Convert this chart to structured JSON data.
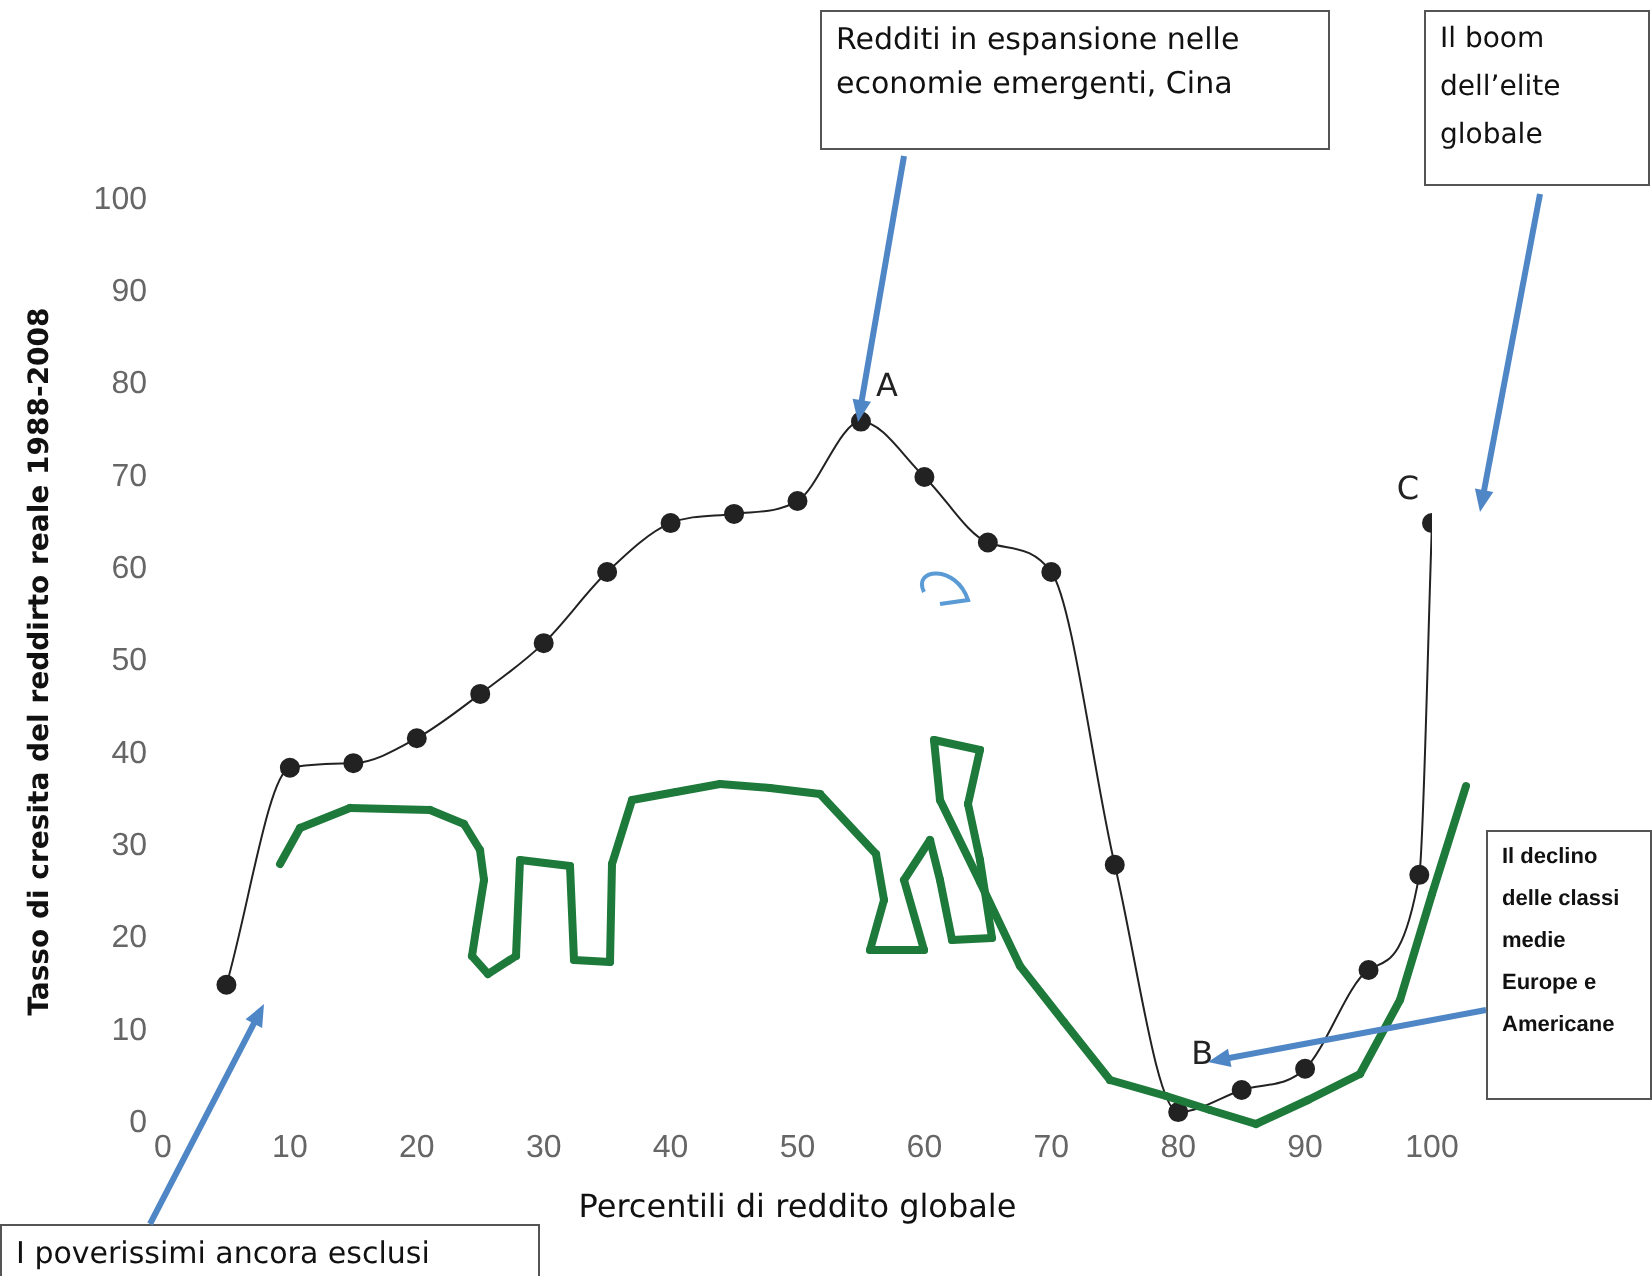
{
  "chart_data": {
    "type": "line",
    "xlabel": "Percentili di reddito globale",
    "ylabel": "Tasso di cresita del reddirto reale 1988-2008",
    "x": [
      5,
      10,
      15,
      20,
      25,
      30,
      35,
      40,
      45,
      50,
      55,
      60,
      65,
      70,
      75,
      80,
      85,
      90,
      95,
      99,
      100
    ],
    "series": [
      {
        "color": "#222222",
        "values": [
          15,
          38.5,
          39,
          41.7,
          46.5,
          52,
          59.7,
          65,
          66,
          67.4,
          76,
          70,
          62.9,
          59.7,
          28,
          1.2,
          3.6,
          5.9,
          16.6,
          26.9,
          65
        ]
      }
    ],
    "xlim": [
      0,
      100
    ],
    "xticks": [
      0,
      10,
      20,
      30,
      40,
      50,
      60,
      70,
      80,
      90,
      100
    ],
    "ylim": [
      0,
      100
    ],
    "yticks": [
      0,
      10,
      20,
      30,
      40,
      50,
      60,
      70,
      80,
      90,
      100
    ],
    "grid": false,
    "legend": false,
    "marker": "circle",
    "line_style": "solid",
    "annotations": [
      "Redditi in espansione nelle economie emergenti, Cina",
      "Il boom dell’elite globale",
      "Il declino delle classi medie Europe e Americane",
      "I poverissimi ancora esclusi",
      {
        "text": "A",
        "x": 55,
        "y": 76
      },
      {
        "text": "B",
        "x": 80,
        "y": 1.2
      },
      {
        "text": "C",
        "x": 100,
        "y": 65
      }
    ]
  }
}
